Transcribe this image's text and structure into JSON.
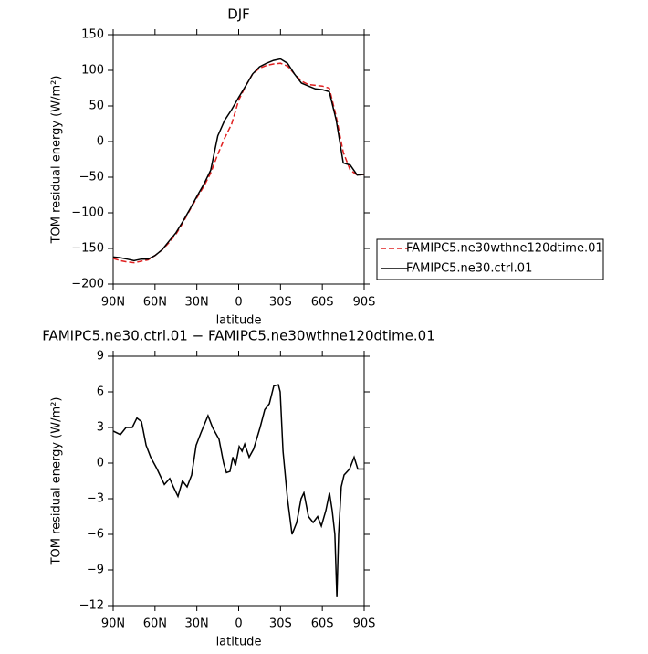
{
  "chart_data": [
    {
      "type": "line",
      "title": "DJF",
      "xlabel": "latitude",
      "ylabel": "TOM residual energy (W/m²)",
      "x": [
        90,
        85,
        80,
        75,
        70,
        65,
        60,
        55,
        50,
        45,
        40,
        35,
        30,
        25,
        20,
        15,
        10,
        5,
        0,
        -5,
        -10,
        -15,
        -20,
        -25,
        -30,
        -35,
        -40,
        -45,
        -50,
        -55,
        -60,
        -65,
        -70,
        -75,
        -80,
        -85,
        -90
      ],
      "series": [
        {
          "name": "FAMIPC5.ne30wthne120dtime.01",
          "color": "#e02020",
          "dash": true,
          "values": [
            -164,
            -167,
            -169,
            -170,
            -168,
            -166,
            -160,
            -152,
            -142,
            -130,
            -114,
            -96,
            -79,
            -63,
            -44,
            -18,
            5,
            25,
            58,
            78,
            95,
            103,
            107,
            109,
            110,
            106,
            95,
            85,
            80,
            79,
            78,
            75,
            35,
            -15,
            -40,
            -47,
            -46
          ]
        },
        {
          "name": "FAMIPC5.ne30.ctrl.01",
          "color": "#000000",
          "dash": false,
          "values": [
            -162,
            -163,
            -165,
            -167,
            -165,
            -165,
            -160,
            -152,
            -140,
            -128,
            -112,
            -95,
            -77,
            -60,
            -40,
            8,
            30,
            45,
            62,
            78,
            95,
            105,
            110,
            114,
            116,
            110,
            95,
            82,
            78,
            74,
            73,
            70,
            30,
            -30,
            -33,
            -47,
            -46
          ]
        }
      ],
      "xlim": [
        90,
        -90
      ],
      "xticks": [
        {
          "value": 90,
          "label": "90N"
        },
        {
          "value": 60,
          "label": "60N"
        },
        {
          "value": 30,
          "label": "30N"
        },
        0,
        {
          "value": -30,
          "label": "30S"
        },
        {
          "value": -60,
          "label": "60S"
        },
        {
          "value": -90,
          "label": "90S"
        }
      ],
      "ylim": [
        -200,
        150
      ],
      "yticks": [
        -200,
        -150,
        -100,
        -50,
        0,
        50,
        100,
        150
      ],
      "legend": "right"
    },
    {
      "type": "line",
      "title": "FAMIPC5.ne30.ctrl.01 − FAMIPC5.ne30wthne120dtime.01",
      "xlabel": "latitude",
      "ylabel": "TOM residual energy (W/m²)",
      "x": [
        90,
        84.8,
        80.8,
        76.3,
        73,
        69.7,
        66.4,
        63.1,
        58.5,
        53.3,
        49.4,
        46.8,
        43.5,
        40.3,
        37,
        33.7,
        30.5,
        27.2,
        22,
        18.7,
        14.1,
        10.8,
        8.8,
        6.2,
        4.2,
        2.3,
        -0.4,
        -2.4,
        -4.3,
        -7.5,
        -10.8,
        -15.4,
        -18.7,
        -22,
        -25.2,
        -28.5,
        -29.8,
        -31.8,
        -35,
        -38.3,
        -41.6,
        -44.8,
        -46.8,
        -50.1,
        -53.4,
        -56.6,
        -59.3,
        -62.5,
        -65.1,
        -67.1,
        -69,
        -70.4,
        -71.7,
        -73.6,
        -75.6,
        -79.5,
        -82.8,
        -85.4,
        -90
      ],
      "series": [
        {
          "color": "#000000",
          "dash": false,
          "values": [
            2.7,
            2.4,
            3.0,
            3.0,
            3.8,
            3.5,
            1.5,
            0.5,
            -0.5,
            -1.8,
            -1.3,
            -2.0,
            -2.8,
            -1.5,
            -2.0,
            -1.0,
            1.5,
            2.5,
            4.0,
            3.0,
            2.0,
            0.0,
            -0.8,
            -0.7,
            0.5,
            -0.2,
            1.4,
            1.0,
            1.6,
            0.5,
            1.2,
            3.0,
            4.5,
            5.0,
            6.5,
            6.6,
            6.0,
            1.0,
            -3.0,
            -6.0,
            -5.0,
            -3.0,
            -2.5,
            -4.5,
            -5.0,
            -4.5,
            -5.3,
            -4.0,
            -2.5,
            -4.0,
            -6.0,
            -11.3,
            -6.0,
            -2.0,
            -1.0,
            -0.5,
            0.5,
            -0.5,
            -0.5
          ]
        }
      ],
      "xlim": [
        90,
        -90
      ],
      "xticks": [
        {
          "value": 90,
          "label": "90N"
        },
        {
          "value": 60,
          "label": "60N"
        },
        {
          "value": 30,
          "label": "30N"
        },
        0,
        {
          "value": -30,
          "label": "30S"
        },
        {
          "value": -60,
          "label": "60S"
        },
        {
          "value": -90,
          "label": "90S"
        }
      ],
      "ylim": [
        -12,
        9
      ],
      "yticks": [
        -12,
        -9,
        -6,
        -3,
        0,
        3,
        6,
        9
      ]
    }
  ]
}
